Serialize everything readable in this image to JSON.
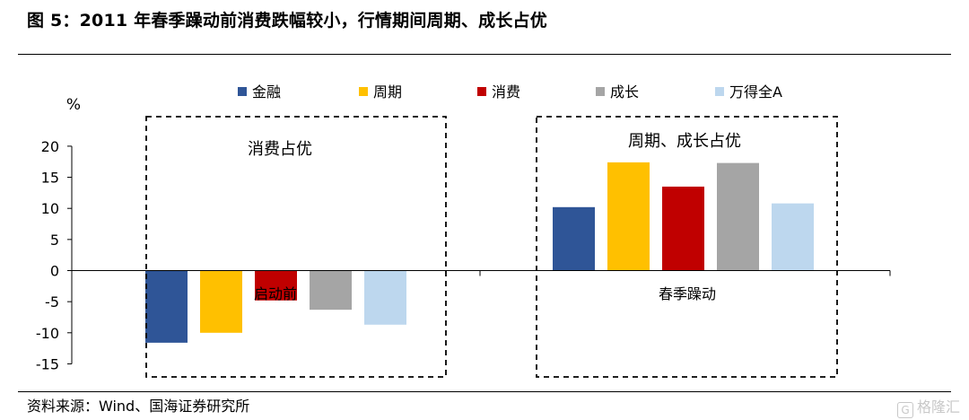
{
  "figure": {
    "title": "图 5：2011 年春季躁动前消费跌幅较小，行情期间周期、成长占优",
    "source": "资料来源：Wind、国海证券研究所",
    "watermark": "格隆汇",
    "watermark_logo": "G"
  },
  "chart_data": {
    "type": "bar",
    "ylabel": "%",
    "ylim": [
      -15,
      20
    ],
    "yticks": [
      20,
      15,
      10,
      5,
      0,
      -5,
      -10,
      -15
    ],
    "grid": false,
    "legend_position": "top",
    "categories": [
      "启动前",
      "春季躁动"
    ],
    "series": [
      {
        "name": "金融",
        "color": "#2F5597",
        "values": [
          -11.6,
          10.2
        ]
      },
      {
        "name": "周期",
        "color": "#FFC000",
        "values": [
          -10.0,
          17.4
        ]
      },
      {
        "name": "消费",
        "color": "#C00000",
        "values": [
          -4.8,
          13.5
        ]
      },
      {
        "name": "成长",
        "color": "#A5A5A5",
        "values": [
          -6.3,
          17.3
        ]
      },
      {
        "name": "万得全A",
        "color": "#BDD7EE",
        "values": [
          -8.7,
          10.8
        ]
      }
    ],
    "annotations": [
      {
        "text": "消费占优",
        "group": "启动前"
      },
      {
        "text": "周期、成长占优",
        "group": "春季躁动"
      }
    ]
  }
}
